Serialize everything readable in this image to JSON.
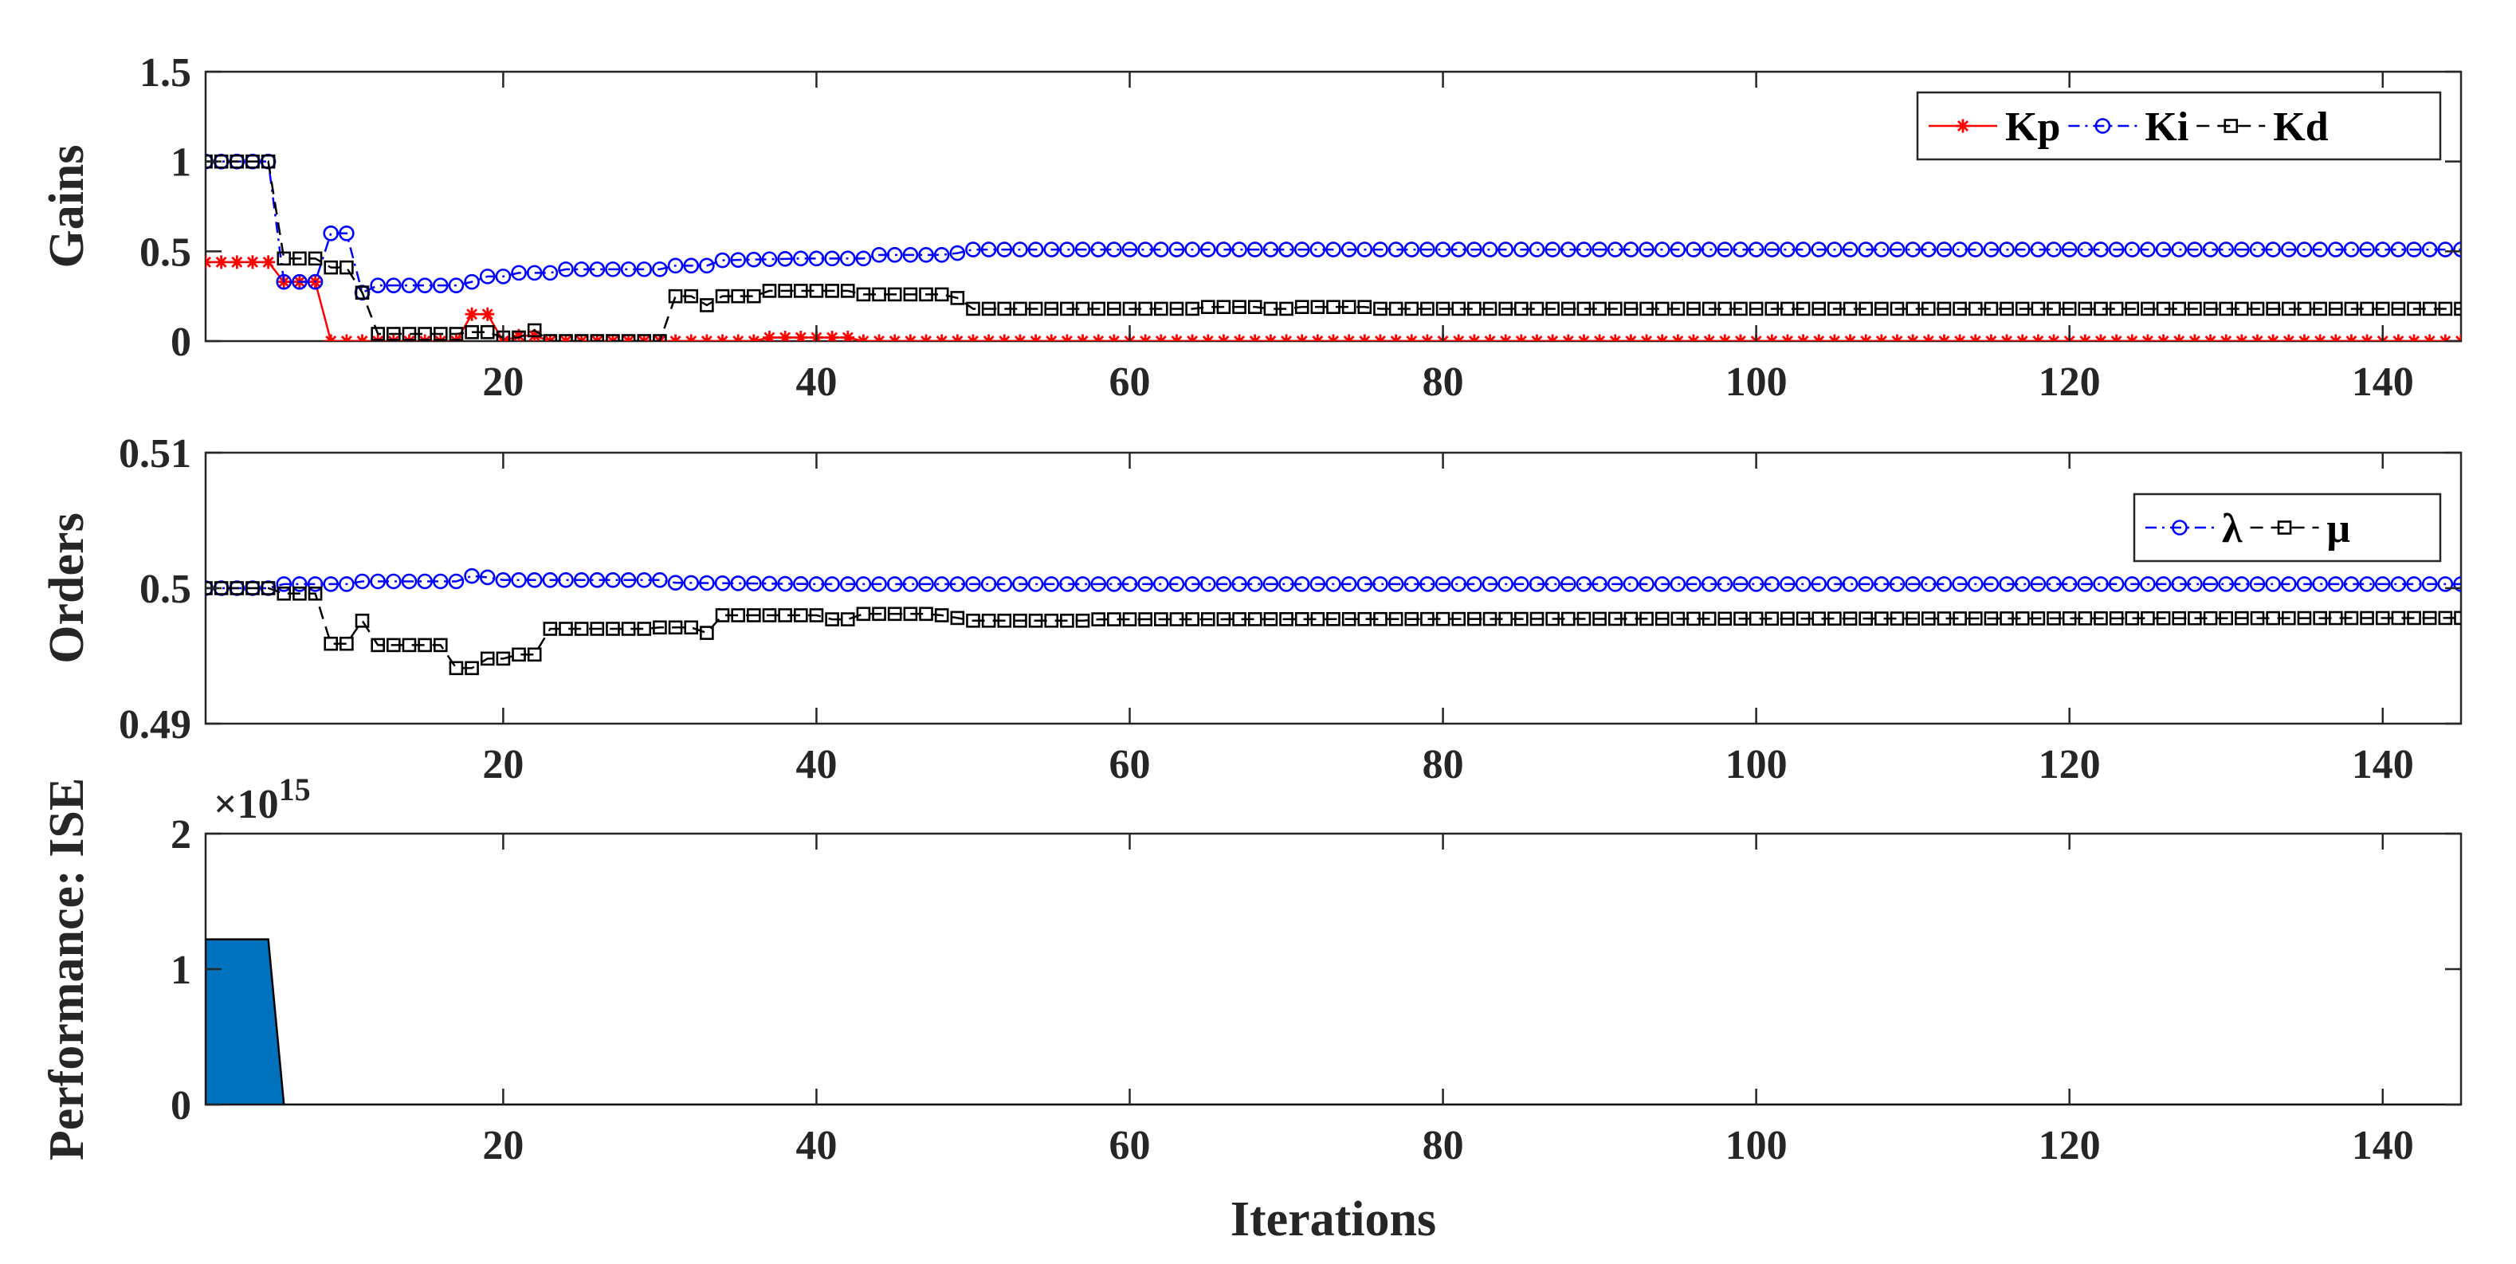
{
  "chart_data": [
    {
      "type": "line",
      "ylabel": "Gains",
      "xlabel": "",
      "xlim": [
        1,
        145
      ],
      "ylim": [
        0,
        1.5
      ],
      "xticks": [
        20,
        40,
        60,
        80,
        100,
        120,
        140
      ],
      "xtick_labels": [
        "20",
        "40",
        "60",
        "80",
        "100",
        "120",
        "140"
      ],
      "yticks": [
        0,
        0.5,
        1,
        1.5
      ],
      "ytick_labels": [
        "0",
        "0.5",
        "1",
        "1.5"
      ],
      "grid": false,
      "legend_position": "top-right",
      "series": [
        {
          "name": "Kp",
          "color": "#ff0000",
          "marker": "asterisk",
          "linestyle": "solid",
          "points": [
            [
              1,
              0.44
            ],
            [
              5,
              0.44
            ],
            [
              6,
              0.33
            ],
            [
              8,
              0.33
            ],
            [
              9,
              0.0
            ],
            [
              17,
              0.0
            ],
            [
              18,
              0.15
            ],
            [
              19,
              0.15
            ],
            [
              20,
              0.0
            ],
            [
              21,
              0.03
            ],
            [
              22,
              0.03
            ],
            [
              23,
              0.0
            ],
            [
              36,
              0.0
            ],
            [
              37,
              0.02
            ],
            [
              42,
              0.02
            ],
            [
              43,
              0.0
            ],
            [
              145,
              0.0
            ]
          ]
        },
        {
          "name": "Ki",
          "color": "#0000ff",
          "marker": "circle",
          "linestyle": "dashdot",
          "points": [
            [
              1,
              1.0
            ],
            [
              5,
              1.0
            ],
            [
              6,
              0.33
            ],
            [
              8,
              0.33
            ],
            [
              9,
              0.6
            ],
            [
              10,
              0.6
            ],
            [
              11,
              0.27
            ],
            [
              12,
              0.31
            ],
            [
              17,
              0.31
            ],
            [
              18,
              0.33
            ],
            [
              19,
              0.36
            ],
            [
              20,
              0.36
            ],
            [
              21,
              0.38
            ],
            [
              23,
              0.38
            ],
            [
              24,
              0.4
            ],
            [
              30,
              0.4
            ],
            [
              31,
              0.42
            ],
            [
              33,
              0.42
            ],
            [
              34,
              0.45
            ],
            [
              39,
              0.46
            ],
            [
              43,
              0.46
            ],
            [
              44,
              0.48
            ],
            [
              48,
              0.48
            ],
            [
              49,
              0.49
            ],
            [
              50,
              0.51
            ],
            [
              145,
              0.51
            ]
          ]
        },
        {
          "name": "Kd",
          "color": "#000000",
          "marker": "square",
          "linestyle": "dashed",
          "points": [
            [
              1,
              1.0
            ],
            [
              5,
              1.0
            ],
            [
              6,
              0.46
            ],
            [
              8,
              0.46
            ],
            [
              9,
              0.41
            ],
            [
              10,
              0.41
            ],
            [
              11,
              0.27
            ],
            [
              12,
              0.04
            ],
            [
              17,
              0.04
            ],
            [
              18,
              0.05
            ],
            [
              19,
              0.05
            ],
            [
              20,
              0.02
            ],
            [
              21,
              0.02
            ],
            [
              22,
              0.06
            ],
            [
              23,
              0.0
            ],
            [
              30,
              0.0
            ],
            [
              31,
              0.25
            ],
            [
              32,
              0.25
            ],
            [
              33,
              0.2
            ],
            [
              34,
              0.25
            ],
            [
              36,
              0.25
            ],
            [
              37,
              0.28
            ],
            [
              42,
              0.28
            ],
            [
              43,
              0.26
            ],
            [
              48,
              0.26
            ],
            [
              49,
              0.24
            ],
            [
              50,
              0.18
            ],
            [
              64,
              0.18
            ],
            [
              65,
              0.19
            ],
            [
              68,
              0.19
            ],
            [
              69,
              0.18
            ],
            [
              70,
              0.18
            ],
            [
              71,
              0.19
            ],
            [
              75,
              0.19
            ],
            [
              76,
              0.18
            ],
            [
              145,
              0.18
            ]
          ]
        }
      ]
    },
    {
      "type": "line",
      "ylabel": "Orders",
      "xlabel": "",
      "xlim": [
        1,
        145
      ],
      "ylim": [
        0.49,
        0.51
      ],
      "xticks": [
        20,
        40,
        60,
        80,
        100,
        120,
        140
      ],
      "xtick_labels": [
        "20",
        "40",
        "60",
        "80",
        "100",
        "120",
        "140"
      ],
      "yticks": [
        0.49,
        0.5,
        0.51
      ],
      "ytick_labels": [
        "0.49",
        "0.5",
        "0.51"
      ],
      "grid": false,
      "legend_position": "top-right",
      "series": [
        {
          "name": "λ",
          "color": "#0000ff",
          "marker": "circle",
          "linestyle": "dashdot",
          "points": [
            [
              1,
              0.5
            ],
            [
              5,
              0.5
            ],
            [
              6,
              0.5003
            ],
            [
              10,
              0.5003
            ],
            [
              11,
              0.5005
            ],
            [
              17,
              0.5005
            ],
            [
              18,
              0.5009
            ],
            [
              19,
              0.5008
            ],
            [
              20,
              0.5006
            ],
            [
              30,
              0.5006
            ],
            [
              31,
              0.5004
            ],
            [
              40,
              0.5003
            ],
            [
              145,
              0.5003
            ]
          ]
        },
        {
          "name": "μ",
          "color": "#000000",
          "marker": "square",
          "linestyle": "dashed",
          "points": [
            [
              1,
              0.5
            ],
            [
              5,
              0.5
            ],
            [
              6,
              0.4996
            ],
            [
              8,
              0.4996
            ],
            [
              9,
              0.4959
            ],
            [
              10,
              0.4959
            ],
            [
              11,
              0.4976
            ],
            [
              12,
              0.4958
            ],
            [
              16,
              0.4958
            ],
            [
              17,
              0.4941
            ],
            [
              18,
              0.4941
            ],
            [
              19,
              0.4948
            ],
            [
              20,
              0.4948
            ],
            [
              21,
              0.4951
            ],
            [
              22,
              0.4951
            ],
            [
              23,
              0.497
            ],
            [
              29,
              0.497
            ],
            [
              30,
              0.4971
            ],
            [
              32,
              0.4971
            ],
            [
              33,
              0.4967
            ],
            [
              34,
              0.498
            ],
            [
              40,
              0.498
            ],
            [
              41,
              0.4977
            ],
            [
              42,
              0.4977
            ],
            [
              43,
              0.4981
            ],
            [
              47,
              0.4981
            ],
            [
              48,
              0.498
            ],
            [
              49,
              0.4978
            ],
            [
              50,
              0.4976
            ],
            [
              57,
              0.4976
            ],
            [
              58,
              0.4977
            ],
            [
              145,
              0.4978
            ]
          ]
        }
      ]
    },
    {
      "type": "area",
      "ylabel": "Performance: ISE",
      "xlabel": "Iterations",
      "exponent_label": "×10",
      "exponent": "15",
      "xlim": [
        1,
        145
      ],
      "ylim": [
        0,
        2
      ],
      "xticks": [
        20,
        40,
        60,
        80,
        100,
        120,
        140
      ],
      "xtick_labels": [
        "20",
        "40",
        "60",
        "80",
        "100",
        "120",
        "140"
      ],
      "yticks": [
        0,
        1,
        2
      ],
      "ytick_labels": [
        "0",
        "1",
        "2"
      ],
      "grid": false,
      "color": "#0072bd",
      "points": [
        [
          1,
          1.22
        ],
        [
          5,
          1.22
        ],
        [
          6,
          0.0
        ],
        [
          145,
          0.0
        ]
      ]
    }
  ]
}
